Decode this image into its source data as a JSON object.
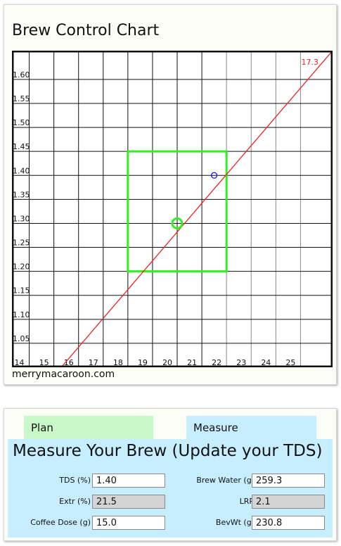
{
  "chart": {
    "title": "Brew Control Chart",
    "credit": "merrymacaroon.com"
  },
  "chart_data": {
    "type": "line",
    "title": "Brew Control Chart",
    "xlabel": "",
    "ylabel": "",
    "xlim": [
      13.3,
      26.3
    ],
    "ylim": [
      1.0,
      1.66
    ],
    "x_ticks": [
      "14",
      "15",
      "16",
      "17",
      "18",
      "19",
      "20",
      "21",
      "22",
      "23",
      "24",
      "25"
    ],
    "y_ticks": [
      "1.05",
      "1.10",
      "1.15",
      "1.20",
      "1.25",
      "1.30",
      "1.35",
      "1.40",
      "1.45",
      "1.50",
      "1.55",
      "1.60"
    ],
    "grid": true,
    "ratio_line": {
      "label": "17.3",
      "color": "#ee2222",
      "points": [
        [
          15.3,
          1.0
        ],
        [
          26.3,
          1.66
        ]
      ]
    },
    "target_box": {
      "x": [
        18,
        22
      ],
      "y": [
        1.2,
        1.45
      ],
      "color": "#33ee22"
    },
    "target_center": {
      "x": 20,
      "y": 1.3,
      "color": "#33ee22"
    },
    "measured_point": {
      "x": 21.5,
      "y": 1.4,
      "color": "#1111ff"
    }
  },
  "tabs": [
    {
      "label": "Plan"
    },
    {
      "label": "Measure"
    }
  ],
  "measure": {
    "title": "Measure Your Brew (Update your TDS)",
    "tds_label": "TDS (%)",
    "tds_value": "1.40",
    "extr_label": "Extr (%)",
    "extr_value": "21.5",
    "dose_label": "Coffee Dose (g)",
    "dose_value": "15.0",
    "water_label": "Brew Water (g)",
    "water_value": "259.3",
    "lrr_label": "LRR",
    "lrr_value": "2.1",
    "bevwt_label": "BevWt (g)",
    "bevwt_value": "230.8"
  }
}
